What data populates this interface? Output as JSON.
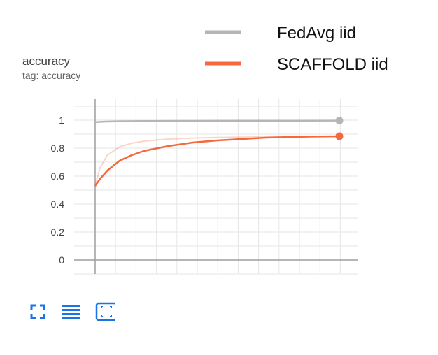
{
  "card": {
    "title": "accuracy",
    "subtitle": "tag: accuracy"
  },
  "toolbar": {
    "icons": [
      "fullscreen-icon",
      "legend-toggle-icon",
      "fit-domain-icon"
    ],
    "accent": "#1a73e8"
  },
  "chart_data": {
    "type": "line",
    "title": "",
    "xlabel": "",
    "ylabel": "",
    "ylim": [
      -0.1,
      1.15
    ],
    "yticks": [
      "0",
      "0.2",
      "0.4",
      "0.6",
      "0.8",
      "1"
    ],
    "grid": true,
    "legend_position": "top-right",
    "series": [
      {
        "name": "FedAvg iid",
        "color": "#b5b5b5",
        "x": [
          0,
          2,
          5,
          10,
          20,
          40,
          60,
          80,
          100
        ],
        "values": [
          0.985,
          0.988,
          0.99,
          0.992,
          0.994,
          0.995,
          0.996,
          0.996,
          0.997
        ],
        "raw_values": [
          0.985,
          0.988,
          0.99,
          0.992,
          0.994,
          0.995,
          0.996,
          0.996,
          0.997
        ]
      },
      {
        "name": "SCAFFOLD iid",
        "color": "#f4683b",
        "x": [
          0,
          2,
          5,
          10,
          15,
          20,
          30,
          40,
          50,
          60,
          70,
          80,
          90,
          100
        ],
        "values": [
          0.53,
          0.58,
          0.64,
          0.71,
          0.75,
          0.78,
          0.815,
          0.84,
          0.855,
          0.865,
          0.875,
          0.88,
          0.883,
          0.885
        ],
        "raw_values": [
          0.53,
          0.66,
          0.75,
          0.81,
          0.835,
          0.85,
          0.865,
          0.872,
          0.876,
          0.879,
          0.881,
          0.883,
          0.884,
          0.885
        ]
      }
    ]
  }
}
